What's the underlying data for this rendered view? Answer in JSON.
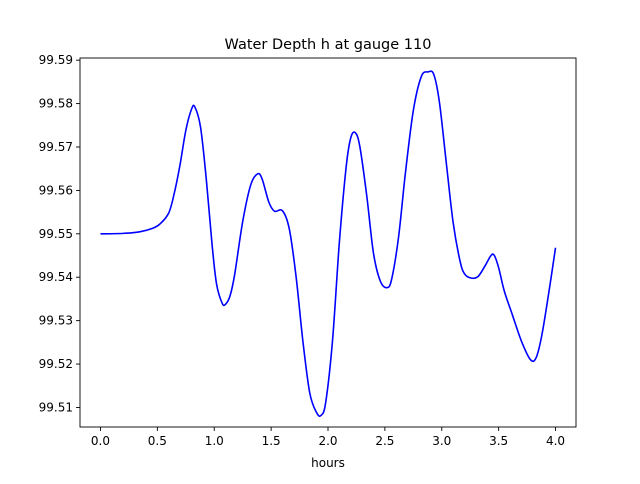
{
  "chart_data": {
    "type": "line",
    "title": "Water Depth h at gauge 110",
    "xlabel": "hours",
    "ylabel": "",
    "xlim": [
      -0.18,
      4.18
    ],
    "ylim": [
      99.5055,
      99.5905
    ],
    "xticks": [
      0.0,
      0.5,
      1.0,
      1.5,
      2.0,
      2.5,
      3.0,
      3.5,
      4.0
    ],
    "xtick_labels": [
      "0.0",
      "0.5",
      "1.0",
      "1.5",
      "2.0",
      "2.5",
      "3.0",
      "3.5",
      "4.0"
    ],
    "yticks": [
      99.51,
      99.52,
      99.53,
      99.54,
      99.55,
      99.56,
      99.57,
      99.58,
      99.59
    ],
    "ytick_labels": [
      "99.51",
      "99.52",
      "99.53",
      "99.54",
      "99.55",
      "99.56",
      "99.57",
      "99.58",
      "99.59"
    ],
    "grid": false,
    "line_color": "#0000ff",
    "series": [
      {
        "x": [
          0.0,
          0.2,
          0.35,
          0.45,
          0.52,
          0.6,
          0.65,
          0.7,
          0.75,
          0.8,
          0.83,
          0.88,
          0.93,
          0.98,
          1.02,
          1.07,
          1.1,
          1.14,
          1.18,
          1.25,
          1.32,
          1.38,
          1.42,
          1.48,
          1.53,
          1.6,
          1.66,
          1.72,
          1.78,
          1.84,
          1.9,
          1.94,
          1.98,
          2.04,
          2.1,
          2.16,
          2.2,
          2.24,
          2.28,
          2.34,
          2.4,
          2.46,
          2.52,
          2.56,
          2.62,
          2.68,
          2.75,
          2.82,
          2.88,
          2.93,
          2.98,
          3.04,
          3.1,
          3.16,
          3.2,
          3.26,
          3.32,
          3.38,
          3.43,
          3.46,
          3.5,
          3.55,
          3.62,
          3.7,
          3.78,
          3.83,
          3.88,
          3.94,
          4.0
        ],
        "y": [
          99.55,
          99.5501,
          99.5505,
          99.5512,
          99.5522,
          99.5548,
          99.5595,
          99.566,
          99.5738,
          99.5787,
          99.5792,
          99.5745,
          99.5626,
          99.5478,
          99.5385,
          99.534,
          99.5338,
          99.5358,
          99.5407,
          99.5528,
          99.5612,
          99.5638,
          99.5627,
          99.5573,
          99.5552,
          99.5553,
          99.5511,
          99.54,
          99.5251,
          99.5133,
          99.5088,
          99.5082,
          99.5112,
          99.5255,
          99.5481,
          99.5655,
          99.5721,
          99.5733,
          99.5701,
          99.5589,
          99.5455,
          99.5391,
          99.5376,
          99.5396,
          99.5492,
          99.5639,
          99.5784,
          99.5862,
          99.5873,
          99.5867,
          99.5802,
          99.5663,
          99.5526,
          99.5438,
          99.5408,
          99.5398,
          99.5402,
          99.5426,
          99.5449,
          99.5451,
          99.5422,
          99.5368,
          99.5314,
          99.5253,
          99.521,
          99.5215,
          99.5267,
          99.5363,
          99.5468
        ]
      }
    ]
  }
}
